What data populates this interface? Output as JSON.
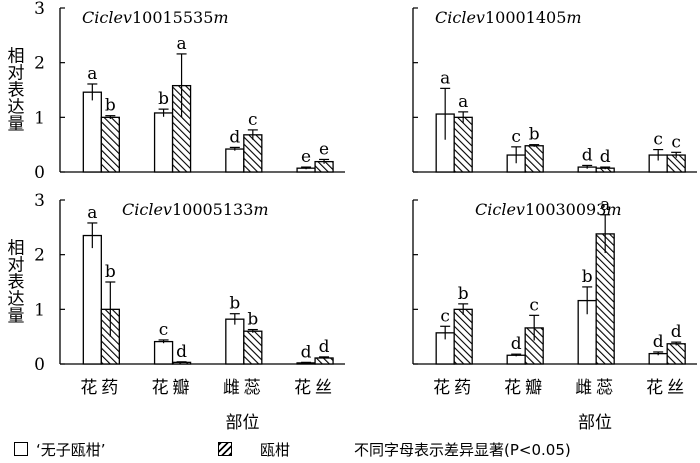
{
  "chart_data": [
    {
      "type": "bar",
      "title": "Ciclev10015535m",
      "categories": [
        "花药",
        "花瓣",
        "雌蕊",
        "花丝"
      ],
      "ylabel": "相对表达量",
      "ylim": [
        0,
        3
      ],
      "yticks": [
        "0",
        "1",
        "2",
        "3"
      ],
      "series": [
        {
          "name": "‘无子瓯柑’",
          "values": [
            1.46,
            1.08,
            0.42,
            0.07
          ],
          "errors": [
            0.15,
            0.07,
            0.03,
            0.02
          ],
          "labels": [
            "a",
            "b",
            "d",
            "e"
          ]
        },
        {
          "name": "瓯柑",
          "values": [
            1.0,
            1.58,
            0.68,
            0.19
          ],
          "errors": [
            0.03,
            0.58,
            0.09,
            0.04
          ],
          "labels": [
            "b",
            "a",
            "c",
            "e"
          ]
        }
      ]
    },
    {
      "type": "bar",
      "title": "Ciclev10001405m",
      "categories": [
        "花药",
        "花瓣",
        "雌蕊",
        "花丝"
      ],
      "ylabel": "",
      "ylim": [
        0,
        3
      ],
      "yticks": [],
      "series": [
        {
          "name": "‘无子瓯柑’",
          "values": [
            1.06,
            0.31,
            0.09,
            0.31
          ],
          "errors": [
            0.47,
            0.15,
            0.03,
            0.1
          ],
          "labels": [
            "a",
            "c",
            "d",
            "c"
          ]
        },
        {
          "name": "瓯柑",
          "values": [
            1.0,
            0.48,
            0.07,
            0.31
          ],
          "errors": [
            0.1,
            0.02,
            0.02,
            0.05
          ],
          "labels": [
            "a",
            "b",
            "d",
            "c"
          ]
        }
      ]
    },
    {
      "type": "bar",
      "title": "Ciclev10005133m",
      "categories": [
        "花药",
        "花瓣",
        "雌蕊",
        "花丝"
      ],
      "xlabel": "部位",
      "ylabel": "相对表达量",
      "ylim": [
        0,
        3
      ],
      "yticks": [
        "0",
        "1",
        "2",
        "3"
      ],
      "series": [
        {
          "name": "‘无子瓯柑’",
          "values": [
            2.35,
            0.41,
            0.82,
            0.02
          ],
          "errors": [
            0.23,
            0.03,
            0.1,
            0.01
          ],
          "labels": [
            "a",
            "c",
            "b",
            "d"
          ]
        },
        {
          "name": "瓯柑",
          "values": [
            1.0,
            0.03,
            0.6,
            0.11
          ],
          "errors": [
            0.5,
            0.01,
            0.03,
            0.02
          ],
          "labels": [
            "b",
            "d",
            "b",
            "d"
          ]
        }
      ]
    },
    {
      "type": "bar",
      "title": "Ciclev10030093m",
      "categories": [
        "花药",
        "花瓣",
        "雌蕊",
        "花丝"
      ],
      "xlabel": "部位",
      "ylabel": "",
      "ylim": [
        0,
        3
      ],
      "yticks": [],
      "series": [
        {
          "name": "‘无子瓯柑’",
          "values": [
            0.57,
            0.16,
            1.16,
            0.19
          ],
          "errors": [
            0.12,
            0.02,
            0.25,
            0.03
          ],
          "labels": [
            "c",
            "d",
            "b",
            "d"
          ]
        },
        {
          "name": "瓯柑",
          "values": [
            1.0,
            0.66,
            2.38,
            0.37
          ],
          "errors": [
            0.1,
            0.23,
            0.35,
            0.03
          ],
          "labels": [
            "b",
            "c",
            "a",
            "d"
          ]
        }
      ]
    }
  ],
  "legend": {
    "series1": "‘无子瓯柑’",
    "series2": "瓯柑",
    "note": "不同字母表示差异显著(P<0.05)"
  }
}
